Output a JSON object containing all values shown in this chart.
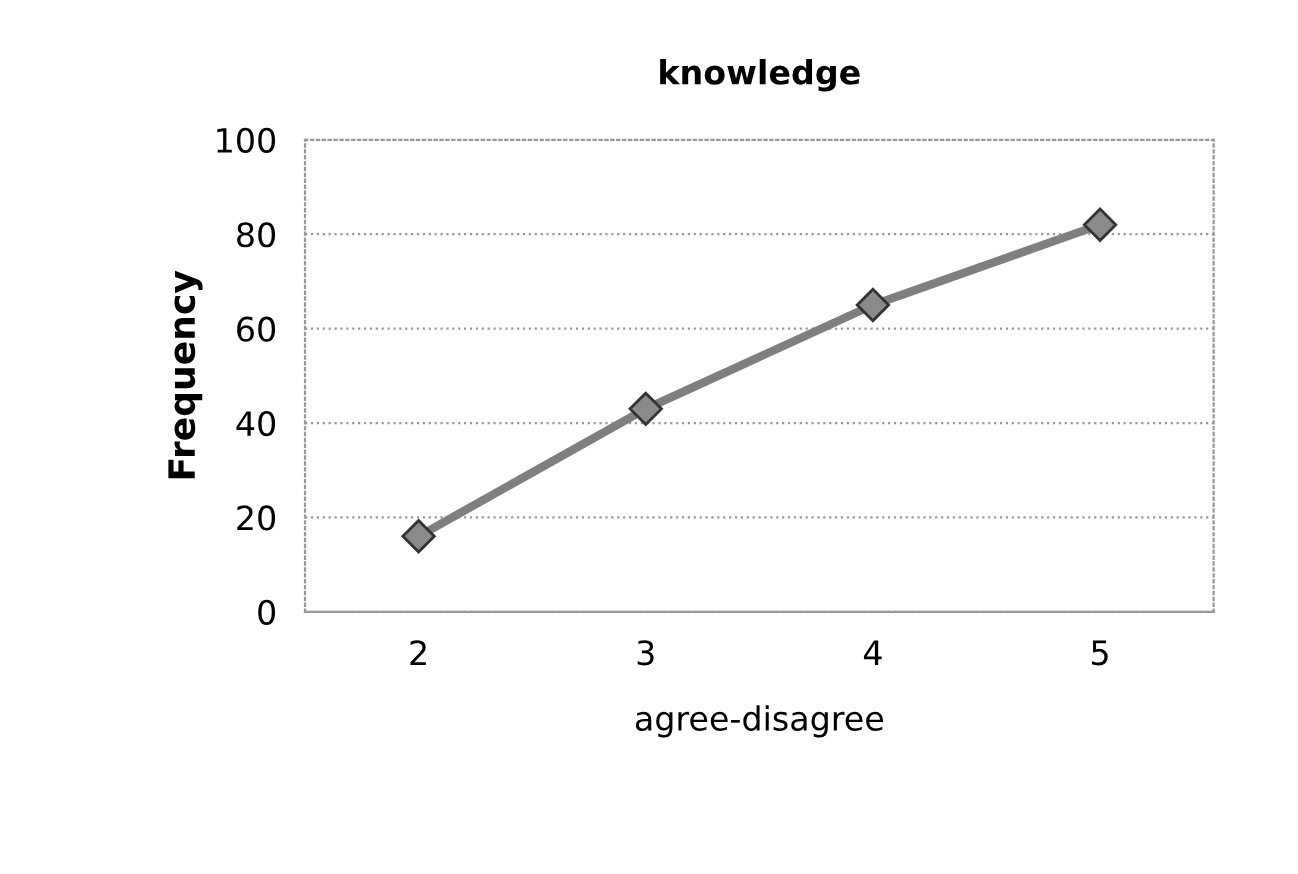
{
  "chart_data": {
    "type": "line",
    "title": "knowledge",
    "xlabel": "agree-disagree",
    "ylabel": "Frequency",
    "categories": [
      "2",
      "3",
      "4",
      "5"
    ],
    "series": [
      {
        "color": "#7f7f7f",
        "values": [
          16,
          43,
          65,
          82
        ]
      }
    ],
    "ylim": [
      0,
      100
    ],
    "yticks": [
      0,
      20,
      40,
      60,
      80,
      100
    ],
    "grid": "y",
    "marker": "diamond",
    "line_style": "solid"
  }
}
